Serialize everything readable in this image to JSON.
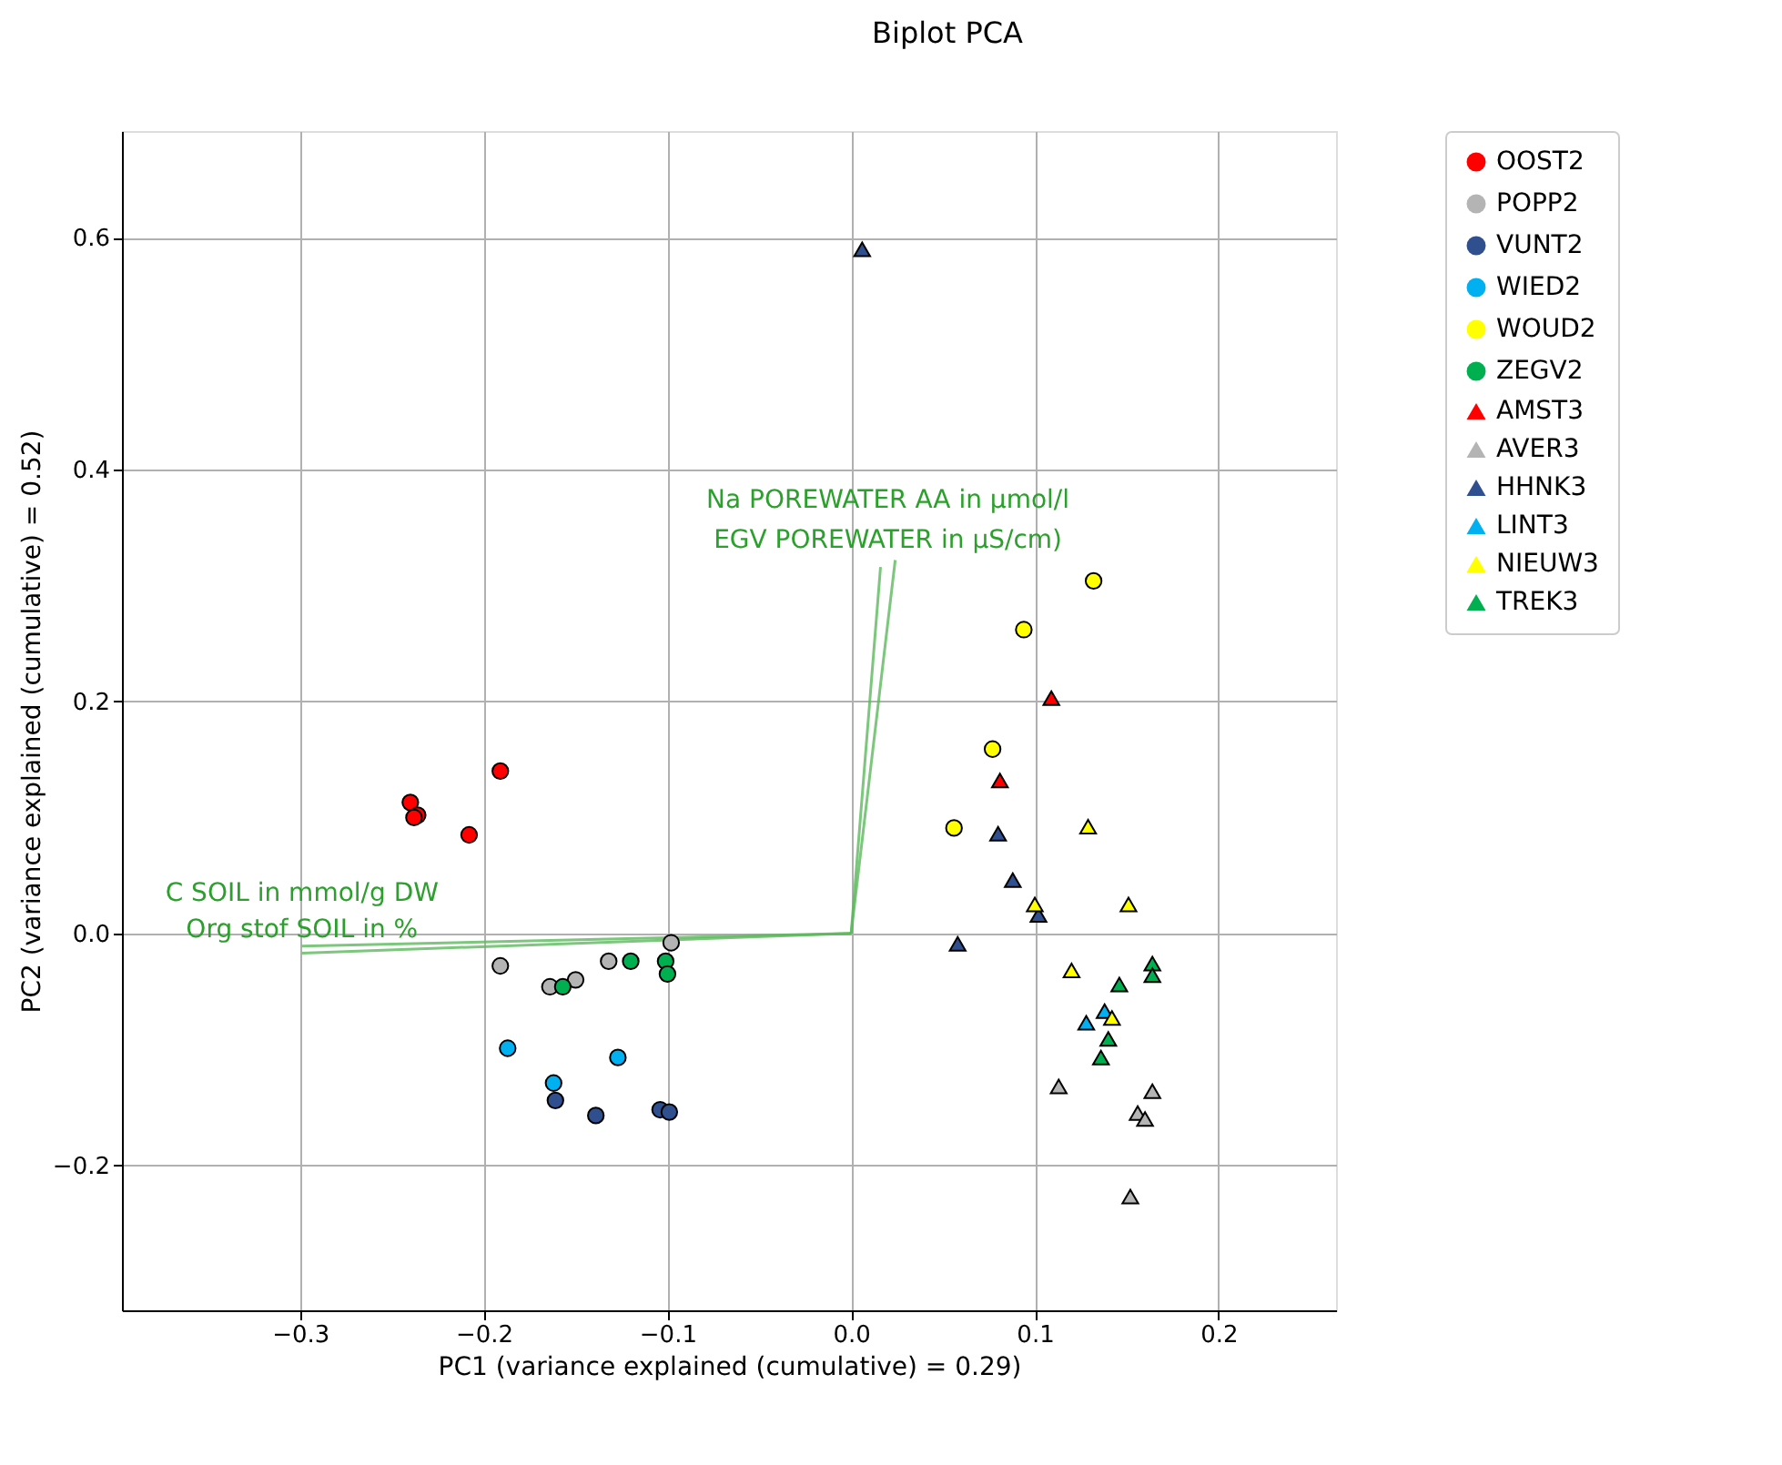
{
  "chart_data": {
    "type": "scatter",
    "title": "Biplot PCA",
    "xlabel": "PC1 (variance explained (cumulative) = 0.29)",
    "ylabel": "PC2 (variance explained (cumulative) = 0.52)",
    "xlim": [
      -0.397,
      0.264
    ],
    "ylim": [
      -0.325,
      0.692
    ],
    "xticks": [
      {
        "value": -0.3,
        "label": "−0.3"
      },
      {
        "value": -0.2,
        "label": "−0.2"
      },
      {
        "value": -0.1,
        "label": "−0.1"
      },
      {
        "value": 0,
        "label": "0.0"
      },
      0.1,
      0.2
    ],
    "yticks": [
      {
        "value": -0.2,
        "label": "−0.2"
      },
      {
        "value": 0,
        "label": "0.0"
      },
      0.2,
      0.4,
      0.6
    ],
    "grid": true,
    "legend": "right",
    "series": [
      {
        "name": "OOST2",
        "color": "#ff0000",
        "marker": "circle",
        "x": [
          -0.24,
          -0.236,
          -0.238,
          -0.208,
          -0.191
        ],
        "values": [
          0.113,
          0.102,
          0.1,
          0.085,
          0.14
        ]
      },
      {
        "name": "POPP2",
        "color": "#b4b4b4",
        "marker": "circle",
        "x": [
          -0.098,
          -0.191,
          -0.164,
          -0.15,
          -0.132
        ],
        "values": [
          -0.008,
          -0.028,
          -0.046,
          -0.04,
          -0.024
        ]
      },
      {
        "name": "VUNT2",
        "color": "#2f4f8f",
        "marker": "circle",
        "x": [
          -0.161,
          -0.139,
          -0.104,
          -0.099
        ],
        "values": [
          -0.144,
          -0.157,
          -0.152,
          -0.154
        ]
      },
      {
        "name": "WIED2",
        "color": "#00b0f0",
        "marker": "circle",
        "x": [
          -0.187,
          -0.127,
          -0.162
        ],
        "values": [
          -0.099,
          -0.107,
          -0.129
        ]
      },
      {
        "name": "WOUD2",
        "color": "#ffff00",
        "marker": "circle",
        "x": [
          0.132,
          0.094,
          0.077,
          0.056
        ],
        "values": [
          0.304,
          0.262,
          0.159,
          0.091
        ]
      },
      {
        "name": "ZEGV2",
        "color": "#00b050",
        "marker": "circle",
        "x": [
          -0.12,
          -0.101,
          -0.1,
          -0.157
        ],
        "values": [
          -0.024,
          -0.024,
          -0.035,
          -0.046
        ]
      },
      {
        "name": "AMST3",
        "color": "#ff0000",
        "marker": "triangle",
        "x": [
          0.109,
          0.081
        ],
        "values": [
          0.203,
          0.132
        ]
      },
      {
        "name": "AVER3",
        "color": "#b4b4b4",
        "marker": "triangle",
        "x": [
          0.113,
          0.164,
          0.156,
          0.16,
          0.152
        ],
        "values": [
          -0.132,
          -0.136,
          -0.155,
          -0.16,
          -0.227
        ]
      },
      {
        "name": "HHNK3",
        "color": "#2f4f8f",
        "marker": "triangle",
        "x": [
          0.006,
          0.08,
          0.088,
          0.102,
          0.058
        ],
        "values": [
          0.59,
          0.086,
          0.046,
          0.016,
          -0.009
        ]
      },
      {
        "name": "LINT3",
        "color": "#00b0f0",
        "marker": "triangle",
        "x": [
          0.128,
          0.138
        ],
        "values": [
          -0.077,
          -0.067
        ]
      },
      {
        "name": "NIEUW3",
        "color": "#ffff00",
        "marker": "triangle",
        "x": [
          0.129,
          0.1,
          0.151,
          0.12,
          0.142
        ],
        "values": [
          0.092,
          0.025,
          0.025,
          -0.032,
          -0.073
        ]
      },
      {
        "name": "TREK3",
        "color": "#00b050",
        "marker": "triangle",
        "x": [
          0.164,
          0.164,
          0.146,
          0.14,
          0.136
        ],
        "values": [
          -0.026,
          -0.036,
          -0.044,
          -0.091,
          -0.107
        ]
      },
      {
        "type": "line",
        "name": "Na POREWATER AA in µmol/l",
        "color": "#5cb85c",
        "x": [
          0,
          0.016
        ],
        "values": [
          0,
          0.316
        ]
      },
      {
        "type": "line",
        "name": "EGV  POREWATER  in µS/cm)",
        "color": "#5cb85c",
        "x": [
          0,
          0.024
        ],
        "values": [
          0,
          0.322
        ]
      },
      {
        "type": "line",
        "name": "C SOIL  in mmol/g DW",
        "color": "#5cb85c",
        "x": [
          0,
          -0.299
        ],
        "values": [
          0,
          -0.011
        ]
      },
      {
        "type": "line",
        "name": "Org stof SOIL  in %",
        "color": "#5cb85c",
        "x": [
          0,
          -0.299
        ],
        "values": [
          0,
          -0.017
        ]
      }
    ]
  }
}
